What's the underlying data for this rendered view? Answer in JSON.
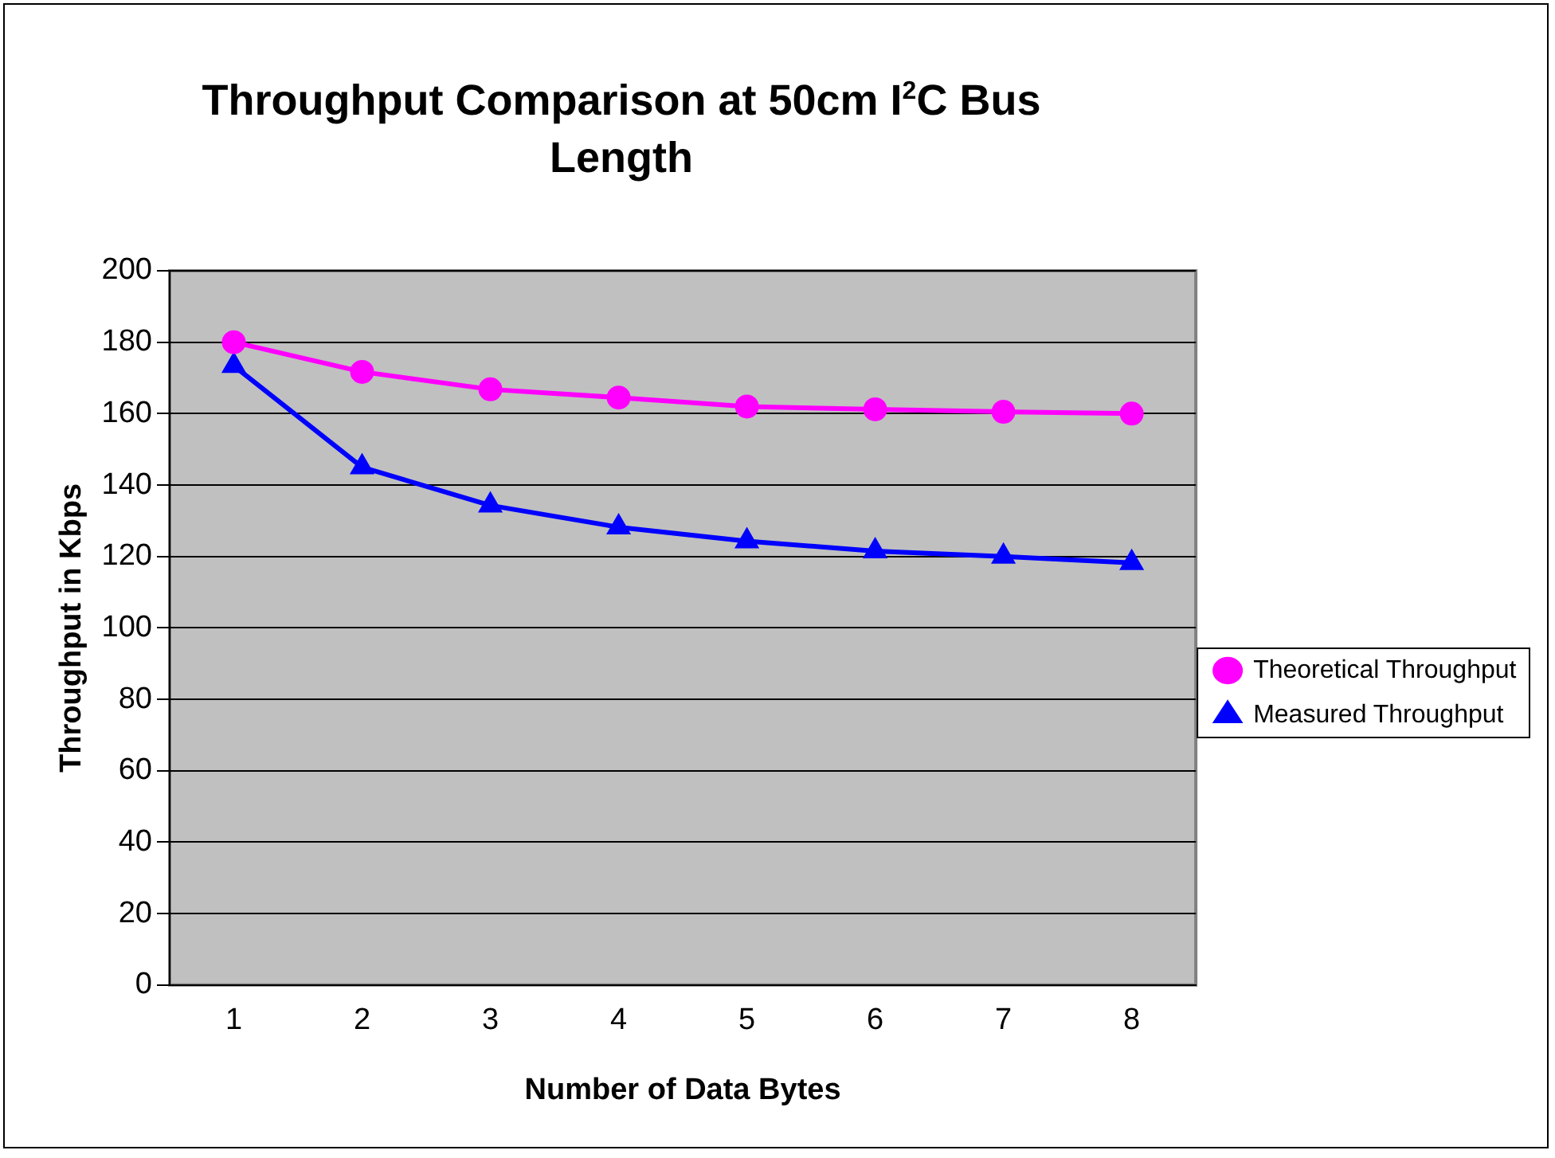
{
  "chart_data": {
    "type": "line",
    "title": "Throughput Comparison at 50cm I$^{2}$C Bus Length",
    "xlabel": "Number of Data Bytes",
    "ylabel": "Throughput in Kbps",
    "categories": [
      "1",
      "2",
      "3",
      "4",
      "5",
      "6",
      "7",
      "8"
    ],
    "series": [
      {
        "name": "Theoretical Throughput",
        "color": "#ff00ff",
        "marker": "circle",
        "values": [
          180,
          171.7,
          166.8,
          164.5,
          162,
          161.2,
          160.5,
          160
        ]
      },
      {
        "name": "Measured Throughput",
        "color": "#0000ff",
        "marker": "triangle",
        "values": [
          173.4,
          145,
          134.3,
          128.2,
          124.3,
          121.5,
          120,
          118.2
        ]
      }
    ],
    "ylim": [
      0,
      200
    ],
    "yticks": [
      0,
      20,
      40,
      60,
      80,
      100,
      120,
      140,
      160,
      180,
      200
    ],
    "grid": "y",
    "legend": "right"
  }
}
